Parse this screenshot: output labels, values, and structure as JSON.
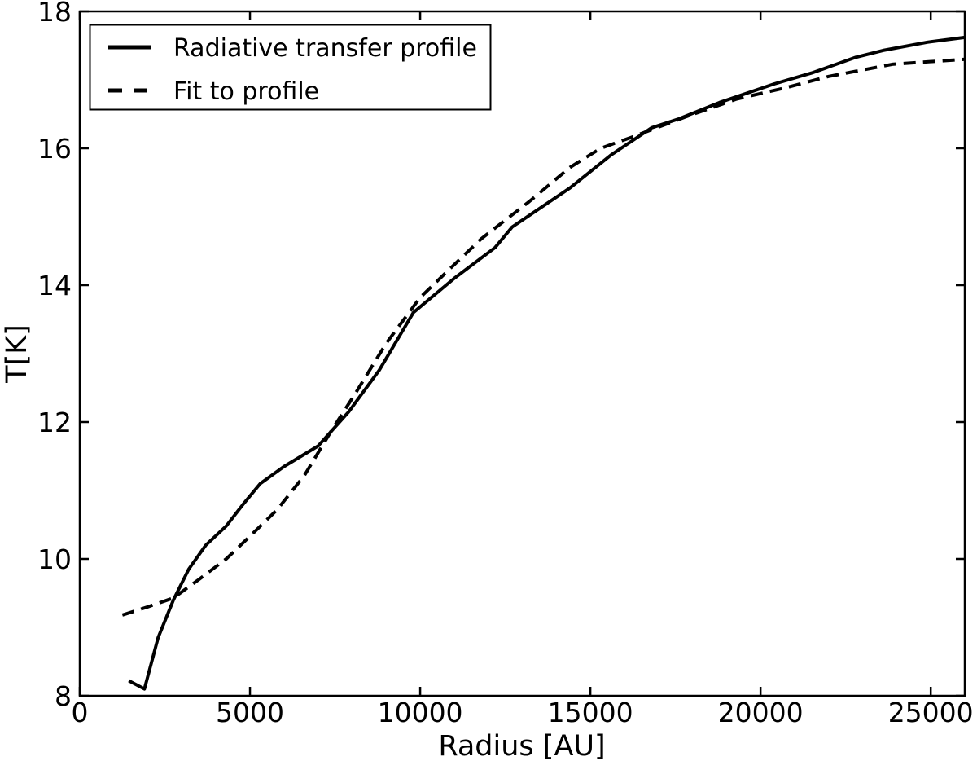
{
  "chart_data": {
    "type": "line",
    "title": "",
    "xlabel": "Radius [AU]",
    "ylabel": "T[K]",
    "xlim": [
      0,
      26000
    ],
    "ylim": [
      8,
      18
    ],
    "x_ticks": [
      0,
      5000,
      10000,
      15000,
      20000,
      25000
    ],
    "y_ticks": [
      8,
      10,
      12,
      14,
      16,
      18
    ],
    "grid": false,
    "tick_direction": "in",
    "axis_color": "#000000",
    "background_color": "#ffffff",
    "legend": {
      "position": "upper-left",
      "border": true
    },
    "series": [
      {
        "name": "Radiative transfer profile",
        "style": "solid",
        "color": "#000000",
        "x": [
          1440,
          1900,
          2300,
          2750,
          3200,
          3700,
          4300,
          4800,
          5300,
          6000,
          7000,
          7900,
          8800,
          9800,
          11000,
          12200,
          12700,
          14400,
          15600,
          16800,
          17600,
          18800,
          20400,
          21500,
          22800,
          23600,
          24900,
          26000
        ],
        "y": [
          8.22,
          8.1,
          8.85,
          9.4,
          9.85,
          10.2,
          10.48,
          10.8,
          11.1,
          11.35,
          11.65,
          12.15,
          12.76,
          13.6,
          14.1,
          14.55,
          14.85,
          15.42,
          15.9,
          16.3,
          16.43,
          16.67,
          16.94,
          17.1,
          17.33,
          17.43,
          17.55,
          17.62
        ]
      },
      {
        "name": "Fit to profile",
        "style": "dashed",
        "color": "#000000",
        "x": [
          1250,
          2000,
          2750,
          3500,
          4300,
          5100,
          5800,
          6600,
          7400,
          8100,
          9000,
          10000,
          11000,
          11800,
          13200,
          14400,
          15300,
          16200,
          17800,
          19300,
          20700,
          22000,
          23900,
          26000
        ],
        "y": [
          9.18,
          9.3,
          9.43,
          9.7,
          10.0,
          10.38,
          10.72,
          11.22,
          11.88,
          12.42,
          13.15,
          13.82,
          14.3,
          14.68,
          15.22,
          15.72,
          16.0,
          16.16,
          16.46,
          16.72,
          16.88,
          17.05,
          17.23,
          17.3
        ]
      }
    ]
  }
}
